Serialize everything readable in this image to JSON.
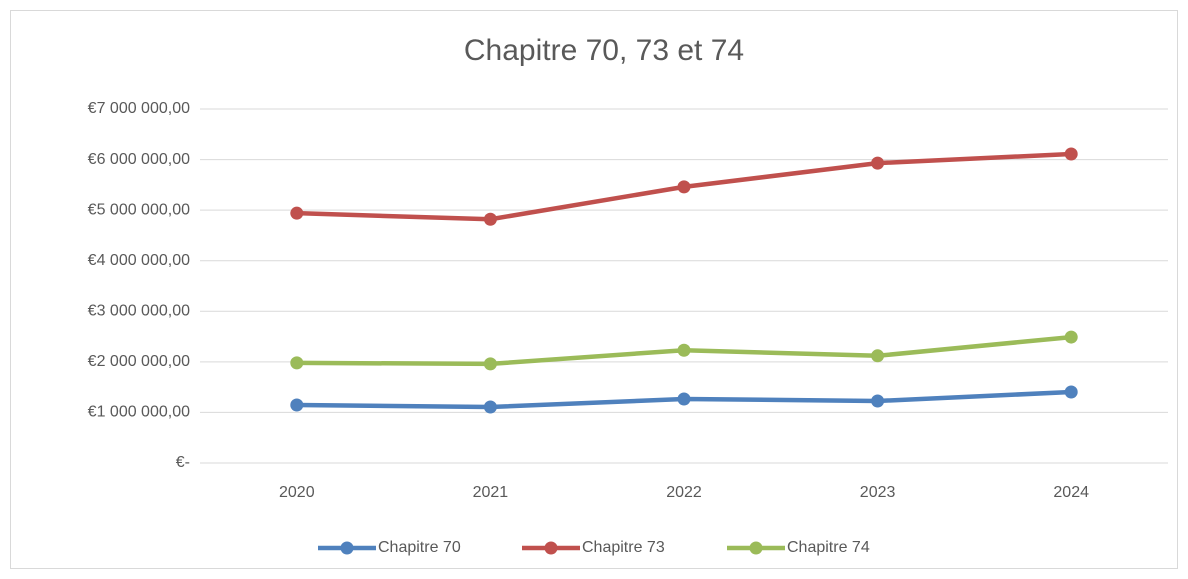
{
  "chart_data": {
    "type": "line",
    "title": "Chapitre 70, 73 et 74",
    "categories": [
      "2020",
      "2021",
      "2022",
      "2023",
      "2024"
    ],
    "series": [
      {
        "name": "Chapitre 70",
        "color": "#4f81bd",
        "values": [
          1147000,
          1107000,
          1266000,
          1226000,
          1404000
        ]
      },
      {
        "name": "Chapitre 73",
        "color": "#c0504d",
        "values": [
          4940000,
          4820000,
          5460000,
          5930000,
          6110000
        ]
      },
      {
        "name": "Chapitre 74",
        "color": "#9bbb59",
        "values": [
          1980000,
          1960000,
          2230000,
          2120000,
          2490000
        ]
      }
    ],
    "ylim": [
      0,
      7000000
    ],
    "yticks": [
      {
        "value": 0,
        "label": "€-"
      },
      {
        "value": 1000000,
        "label": "€1 000 000,00"
      },
      {
        "value": 2000000,
        "label": "€2 000 000,00"
      },
      {
        "value": 3000000,
        "label": "€3 000 000,00"
      },
      {
        "value": 4000000,
        "label": "€4 000 000,00"
      },
      {
        "value": 5000000,
        "label": "€5 000 000,00"
      },
      {
        "value": 6000000,
        "label": "€6 000 000,00"
      },
      {
        "value": 7000000,
        "label": "€7 000 000,00"
      }
    ],
    "grid": true,
    "legend": "bottom"
  }
}
